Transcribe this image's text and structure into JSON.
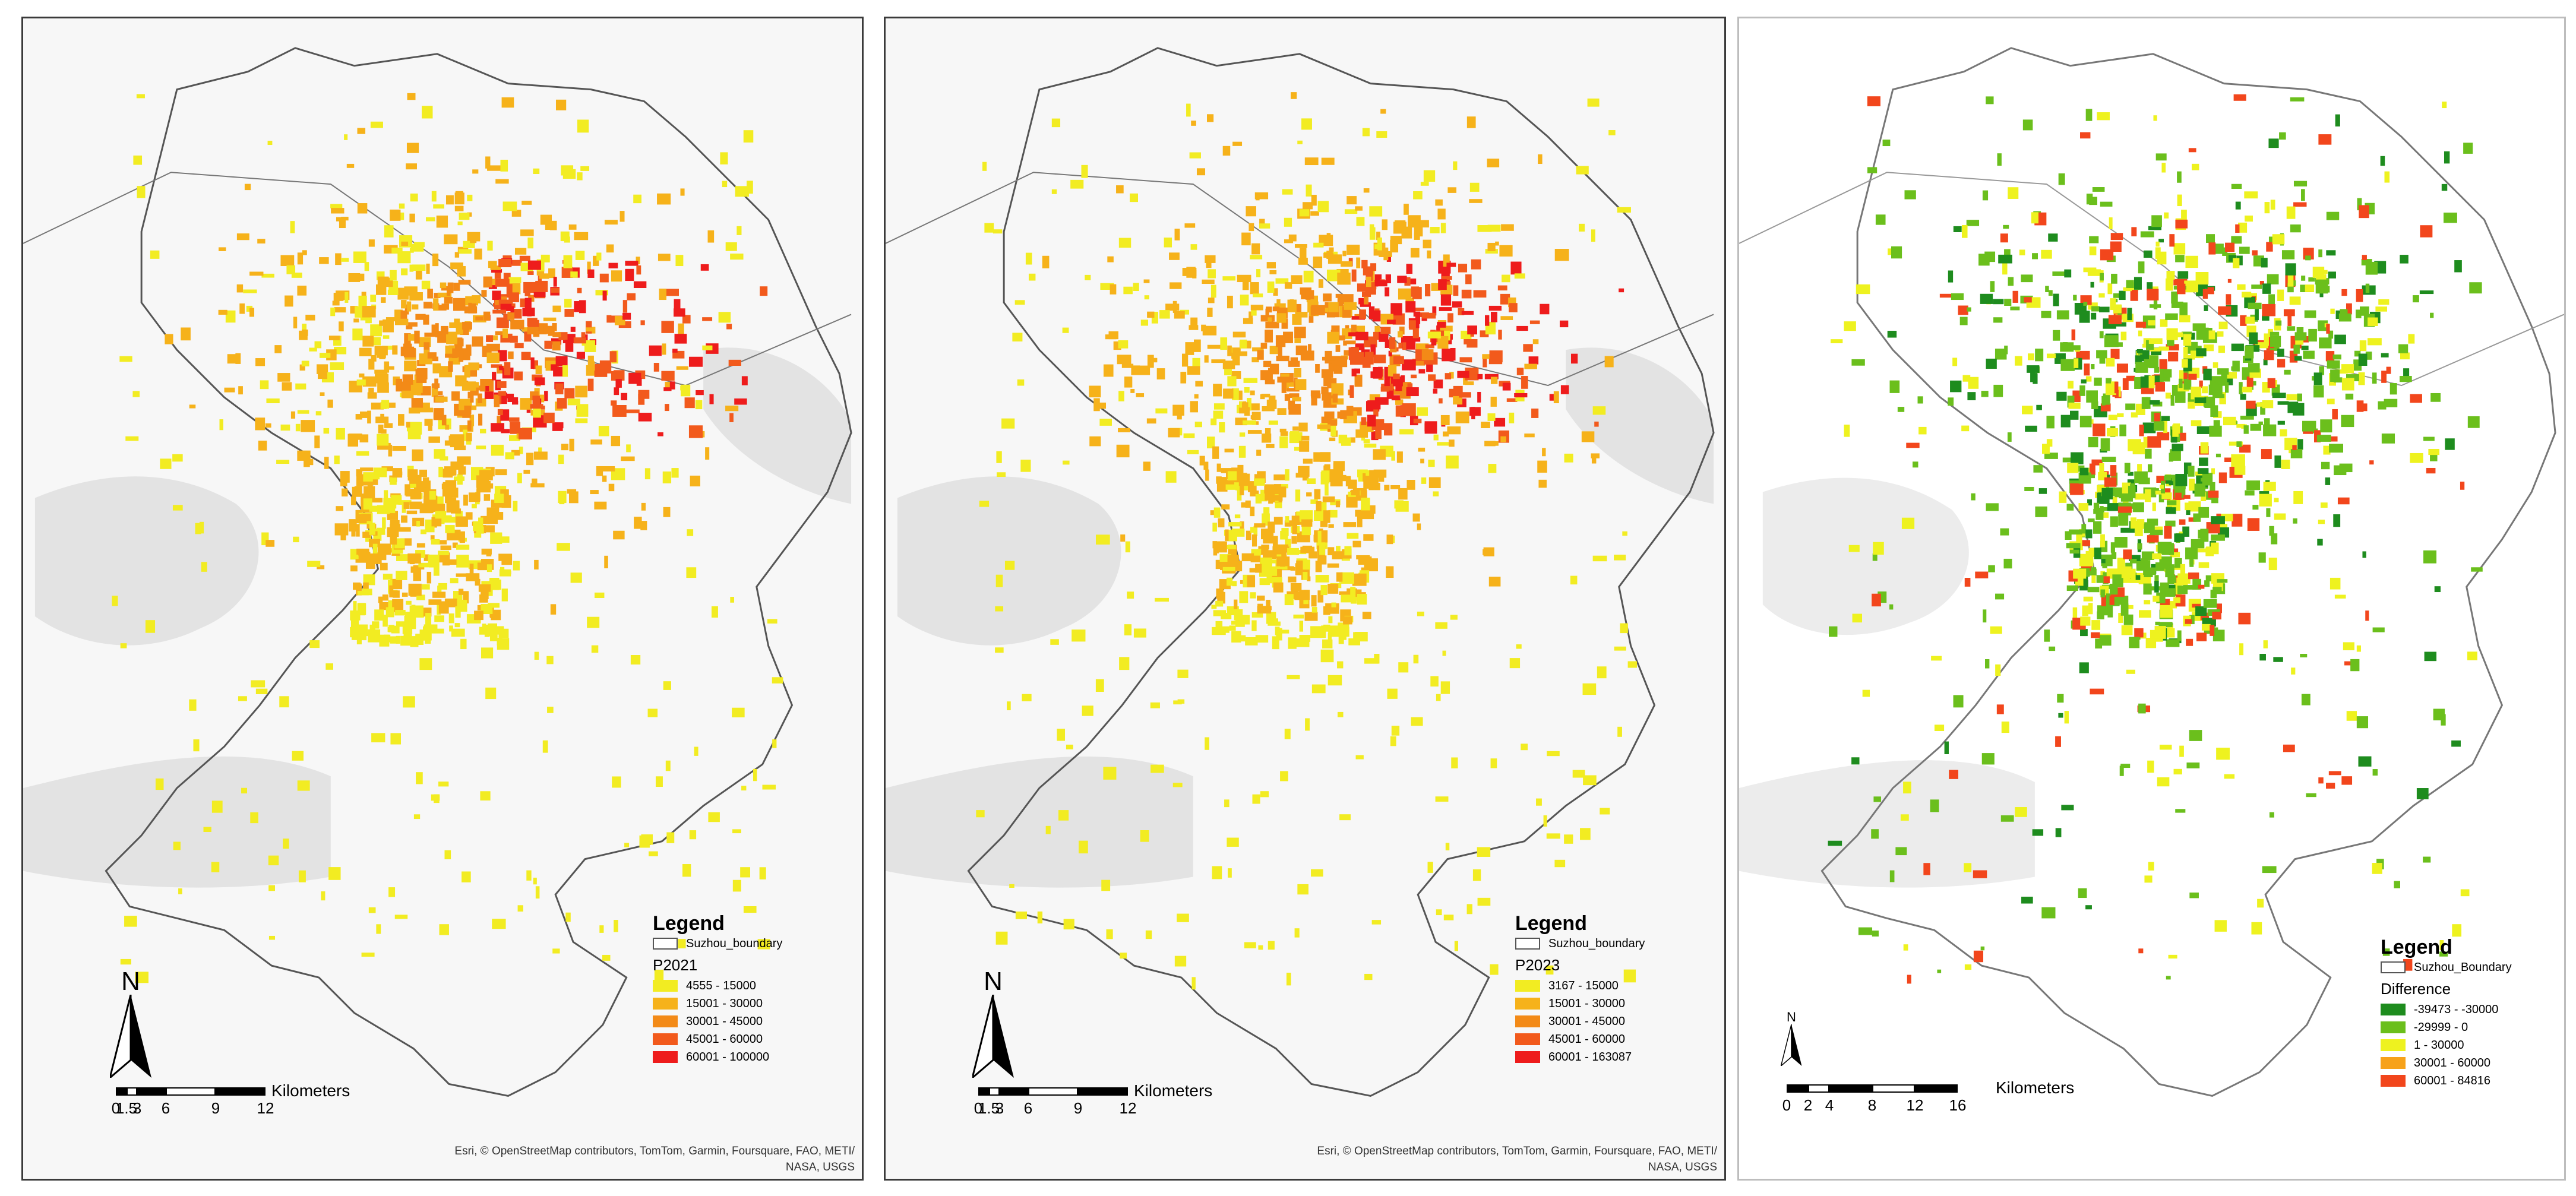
{
  "panels": [
    {
      "boundary_label": "Suzhou_boundary",
      "field": "P2021",
      "classes": [
        {
          "label": "4555 - 15000",
          "color": "#f2ec22"
        },
        {
          "label": "15001 - 30000",
          "color": "#f6b21a"
        },
        {
          "label": "30001 - 45000",
          "color": "#f38a17"
        },
        {
          "label": "45001 - 60000",
          "color": "#f25a1c"
        },
        {
          "label": "60001 - 100000",
          "color": "#ee1c1c"
        }
      ],
      "scale_ticks": [
        "0",
        "1.5",
        "3",
        "6",
        "9",
        "12"
      ],
      "scale_unit": "Kilometers",
      "north": "N",
      "credit_line1": "Esri, © OpenStreetMap contributors, TomTom, Garmin, Foursquare, FAO, METI/",
      "credit_line2": "NASA, USGS"
    },
    {
      "boundary_label": "Suzhou_boundary",
      "field": "P2023",
      "classes": [
        {
          "label": "3167 - 15000",
          "color": "#f2ec22"
        },
        {
          "label": "15001 - 30000",
          "color": "#f6b21a"
        },
        {
          "label": "30001 - 45000",
          "color": "#f38a17"
        },
        {
          "label": "45001 - 60000",
          "color": "#f25a1c"
        },
        {
          "label": "60001 - 163087",
          "color": "#ee1c1c"
        }
      ],
      "scale_ticks": [
        "0",
        "1.5",
        "3",
        "6",
        "9",
        "12"
      ],
      "scale_unit": "Kilometers",
      "north": "N",
      "credit_line1": "Esri, © OpenStreetMap contributors, TomTom, Garmin, Foursquare, FAO, METI/",
      "credit_line2": "NASA, USGS"
    },
    {
      "boundary_label": "Suzhou_Boundary",
      "field": "Difference",
      "classes": [
        {
          "label": "-39473 - -30000",
          "color": "#1e8c1e"
        },
        {
          "label": "-29999 - 0",
          "color": "#6bbf1c"
        },
        {
          "label": "1 - 30000",
          "color": "#eef21f"
        },
        {
          "label": "30001 - 60000",
          "color": "#f7a21a"
        },
        {
          "label": "60001 - 84816",
          "color": "#f2461c"
        }
      ],
      "scale_ticks": [
        "0",
        "2",
        "4",
        "8",
        "12",
        "16"
      ],
      "scale_unit": "Kilometers",
      "north": "N"
    }
  ],
  "legend_title": "Legend"
}
